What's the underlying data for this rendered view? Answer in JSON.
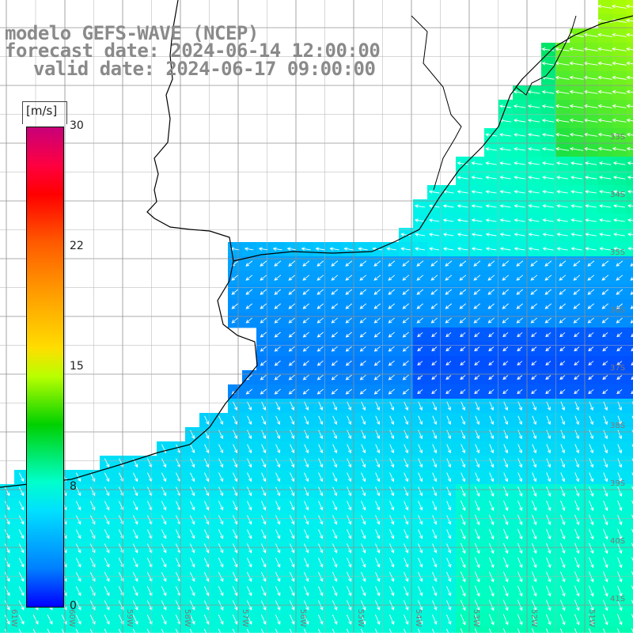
{
  "header": {
    "line1": "modelo GEFS-WAVE (NCEP)",
    "line2": "forecast date: 2024-06-14 12:00:00",
    "line3": "valid date: 2024-06-17 09:00:00"
  },
  "colorbar": {
    "unit": "[m/s]",
    "ticks": [
      "30",
      "22",
      "15",
      "8",
      "0"
    ],
    "min": 0,
    "max": 30,
    "colors": [
      "#c8007a",
      "#ff0000",
      "#ff9900",
      "#ffdd00",
      "#00d000",
      "#00ffcc",
      "#0080ff",
      "#0000ff"
    ]
  },
  "map": {
    "variable": "wind speed and direction",
    "lon_labels": [
      "61W",
      "60W",
      "59W",
      "58W",
      "57W",
      "56W",
      "55W",
      "54W",
      "53W",
      "52W",
      "51W"
    ],
    "lat_labels": [
      "33S",
      "34S",
      "35S",
      "36S",
      "37S",
      "38S",
      "39S",
      "40S",
      "41S"
    ],
    "land_color": "#ffffff",
    "grid_color": "#909090"
  }
}
